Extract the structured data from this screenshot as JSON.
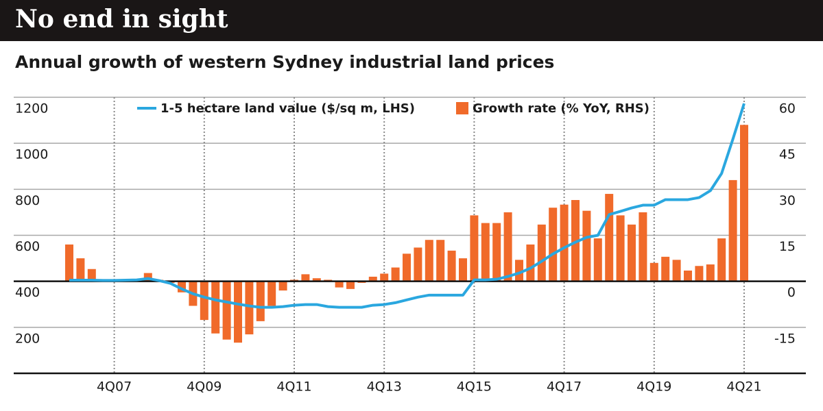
{
  "chart_data": {
    "type": "bar+line",
    "title": "No end in sight",
    "subtitle": "Annual growth of western Sydney industrial land prices",
    "categories": [
      null,
      null,
      null,
      null,
      "4Q07",
      null,
      null,
      null,
      null,
      null,
      null,
      null,
      "4Q09",
      null,
      null,
      null,
      null,
      null,
      null,
      null,
      "4Q11",
      null,
      null,
      null,
      null,
      null,
      null,
      null,
      "4Q13",
      null,
      null,
      null,
      null,
      null,
      null,
      null,
      "4Q15",
      null,
      null,
      null,
      null,
      null,
      null,
      null,
      "4Q17",
      null,
      null,
      null,
      null,
      null,
      null,
      null,
      "4Q19",
      null,
      null,
      null,
      null,
      null,
      null,
      null,
      "4Q21"
    ],
    "series": [
      {
        "name": "1-5 hectare land value ($/sq m, LHS)",
        "type": "line",
        "axis": "y",
        "color": "#2aa7df",
        "values": [
          405,
          405,
          405,
          404,
          404,
          405,
          406,
          412,
          403,
          391,
          367,
          346,
          331,
          319,
          310,
          301,
          293,
          287,
          287,
          290,
          296,
          299,
          299,
          290,
          287,
          287,
          287,
          296,
          299,
          307,
          319,
          331,
          340,
          340,
          340,
          340,
          406,
          406,
          409,
          421,
          436,
          457,
          487,
          519,
          546,
          570,
          591,
          600,
          690,
          704,
          719,
          731,
          731,
          755,
          755,
          755,
          764,
          794,
          869,
          1018,
          1173
        ]
      },
      {
        "name": "Growth rate (% YoY, RHS)",
        "type": "bar",
        "axis": "y2",
        "color": "#f06a2a",
        "values": [
          12,
          7.5,
          4,
          0.5,
          0.3,
          0.3,
          0.5,
          2.7,
          0.5,
          -0.5,
          -3.6,
          -8,
          -12.6,
          -17,
          -19,
          -20,
          -17.3,
          -13,
          -8,
          -3,
          0.5,
          2.3,
          1,
          0.5,
          -2,
          -2.5,
          -0.5,
          1.5,
          2.5,
          4.5,
          9,
          11,
          13.5,
          13.5,
          10,
          7.5,
          21.5,
          19,
          19,
          22.5,
          7,
          12,
          18.5,
          24,
          25,
          26.5,
          23,
          14,
          28.5,
          21.5,
          18.5,
          22.5,
          6,
          8,
          7,
          3.5,
          5,
          5.5,
          14,
          33,
          51
        ]
      }
    ],
    "ylim": [
      0,
      1200
    ],
    "yticks": [
      200,
      400,
      600,
      800,
      1000,
      1200
    ],
    "y2lim": [
      -30,
      60
    ],
    "y2ticks": [
      -15,
      0,
      15,
      30,
      45,
      60
    ],
    "grid": true
  }
}
